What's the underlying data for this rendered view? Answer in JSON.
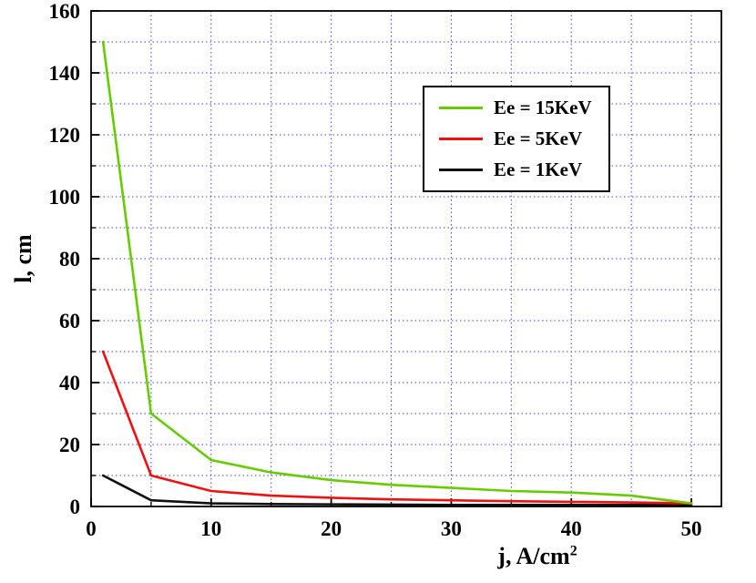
{
  "figure": {
    "background": "#ffffff",
    "axis_color": "#000000",
    "grid_color": "#4444cc"
  },
  "chart_data": {
    "type": "line",
    "title": "",
    "xlabel": "j, A/cm²",
    "xlabel_base": "j, A/cm",
    "xlabel_sup": "2",
    "ylabel": "l, cm",
    "xlim": [
      0,
      52.5
    ],
    "ylim": [
      0,
      160
    ],
    "x_ticks": [
      0,
      10,
      20,
      30,
      40,
      50
    ],
    "y_ticks": [
      0,
      20,
      40,
      60,
      80,
      100,
      120,
      140,
      160
    ],
    "x_minor_step": 5,
    "y_minor_step": 10,
    "grid": {
      "show": true,
      "color": "#4444cc",
      "style": "dotted"
    },
    "legend": {
      "position": "upper-center-inside",
      "border_color": "#000000",
      "background": "#ffffff"
    },
    "x": [
      1,
      5,
      10,
      15,
      20,
      25,
      30,
      35,
      40,
      45,
      50
    ],
    "series": [
      {
        "name": "Ee = 15KeV",
        "color": "#66cc00",
        "values": [
          150,
          30,
          15,
          11,
          8.5,
          7,
          6,
          5,
          4.5,
          3.5,
          1
        ]
      },
      {
        "name": "Ee = 5KeV",
        "color": "#ee1111",
        "values": [
          50,
          10,
          5,
          3.5,
          2.8,
          2.3,
          2,
          1.7,
          1.5,
          1.3,
          1
        ]
      },
      {
        "name": "Ee = 1KeV",
        "color": "#111111",
        "values": [
          10,
          2,
          1,
          0.8,
          0.7,
          0.6,
          0.5,
          0.5,
          0.5,
          0.5,
          0.5
        ]
      }
    ]
  }
}
